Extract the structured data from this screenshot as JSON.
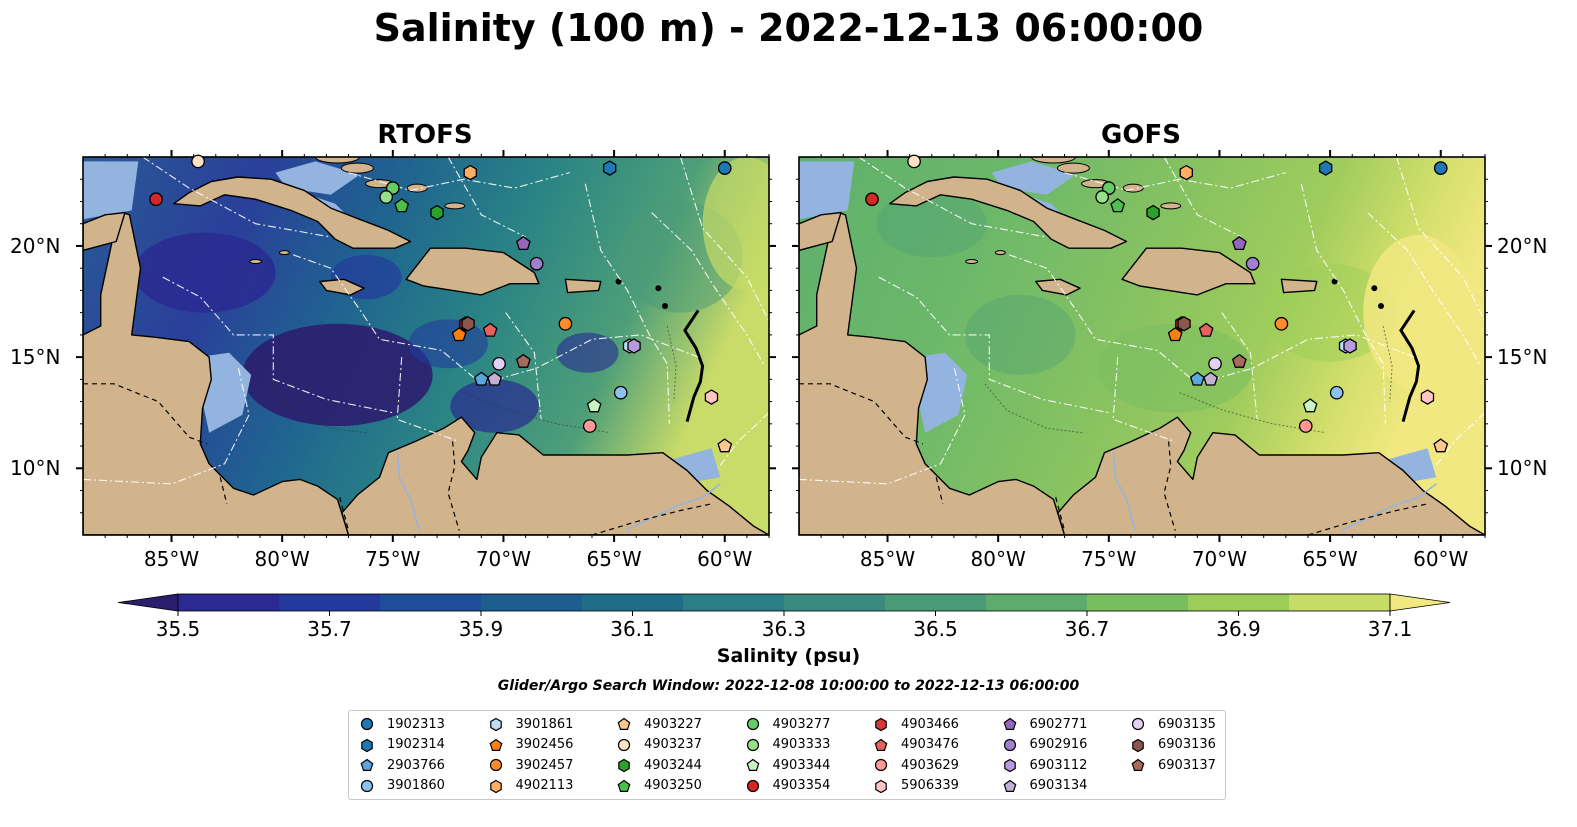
{
  "title": "Salinity (100 m) - 2022-12-13 06:00:00",
  "panels": [
    {
      "title": "RTOFS",
      "style": "rtofs"
    },
    {
      "title": "GOFS",
      "style": "gofs"
    }
  ],
  "map": {
    "lon_range": [
      -89,
      -58
    ],
    "lat_range": [
      7,
      24
    ],
    "x_ticks": [
      "85°W",
      "80°W",
      "75°W",
      "70°W",
      "65°W",
      "60°W"
    ],
    "y_ticks": [
      "20°N",
      "15°N",
      "10°N"
    ],
    "land_color": "#d2b48c",
    "shelf_color": "#94b4e0"
  },
  "colorbar": {
    "label": "Salinity (psu)",
    "ticks": [
      "35.5",
      "35.7",
      "35.9",
      "36.1",
      "36.3",
      "36.5",
      "36.7",
      "36.9",
      "37.1"
    ],
    "colors": [
      "#2b1e6e",
      "#2a2a92",
      "#233a9c",
      "#1f4d98",
      "#1e5e8e",
      "#206d88",
      "#2b7d86",
      "#3a8a80",
      "#4a9a78",
      "#5dac6e",
      "#78bd60",
      "#9ccd58",
      "#c6dc66",
      "#f2e882"
    ]
  },
  "window_text": "Glider/Argo Search Window: 2022-12-08 10:00:00 to 2022-12-13 06:00:00",
  "floats": [
    {
      "id": "1902313",
      "shape": "circle",
      "color": "#1f77b4",
      "lon": -60.0,
      "lat": 23.5
    },
    {
      "id": "1902314",
      "shape": "hexagon",
      "color": "#1f77b4",
      "lon": -65.2,
      "lat": 23.5
    },
    {
      "id": "2903766",
      "shape": "pentagon",
      "color": "#5aa7e0",
      "lon": -71.0,
      "lat": 14.0
    },
    {
      "id": "3901860",
      "shape": "circle",
      "color": "#8dc3f0",
      "lon": -64.7,
      "lat": 13.4
    },
    {
      "id": "3901861",
      "shape": "hexagon",
      "color": "#bcdcf8",
      "lon": -64.3,
      "lat": 15.5
    },
    {
      "id": "3902456",
      "shape": "pentagon",
      "color": "#ff7f0e",
      "lon": -72.0,
      "lat": 16.0
    },
    {
      "id": "3902457",
      "shape": "circle",
      "color": "#ff8c2a",
      "lon": -67.2,
      "lat": 16.5
    },
    {
      "id": "4902113",
      "shape": "hexagon",
      "color": "#ffae66",
      "lon": -71.5,
      "lat": 23.3
    },
    {
      "id": "4903227",
      "shape": "pentagon",
      "color": "#ffc890",
      "lon": -60.0,
      "lat": 11.0
    },
    {
      "id": "4903237",
      "shape": "circle",
      "color": "#ffe2c4",
      "lon": -83.8,
      "lat": 23.8
    },
    {
      "id": "4903244",
      "shape": "hexagon",
      "color": "#2ca02c",
      "lon": -73.0,
      "lat": 21.5
    },
    {
      "id": "4903250",
      "shape": "pentagon",
      "color": "#4cc04c",
      "lon": -74.6,
      "lat": 21.8
    },
    {
      "id": "4903277",
      "shape": "circle",
      "color": "#66cc66",
      "lon": -75.0,
      "lat": 22.6
    },
    {
      "id": "4903333",
      "shape": "circle",
      "color": "#98df8a",
      "lon": -75.3,
      "lat": 22.2
    },
    {
      "id": "4903344",
      "shape": "pentagon",
      "color": "#c8f5c0",
      "lon": -65.9,
      "lat": 12.8
    },
    {
      "id": "4903354",
      "shape": "circle",
      "color": "#d62728",
      "lon": -85.7,
      "lat": 22.1
    },
    {
      "id": "4903466",
      "shape": "hexagon",
      "color": "#d63838",
      "lon": -71.7,
      "lat": 16.5
    },
    {
      "id": "4903476",
      "shape": "pentagon",
      "color": "#e86060",
      "lon": -70.6,
      "lat": 16.2
    },
    {
      "id": "4903629",
      "shape": "circle",
      "color": "#ff9896",
      "lon": -66.1,
      "lat": 11.9
    },
    {
      "id": "5906339",
      "shape": "hexagon",
      "color": "#ffc6c4",
      "lon": -60.6,
      "lat": 13.2
    },
    {
      "id": "6902771",
      "shape": "pentagon",
      "color": "#9467bd",
      "lon": -69.1,
      "lat": 20.1
    },
    {
      "id": "6902916",
      "shape": "circle",
      "color": "#a37fd0",
      "lon": -68.5,
      "lat": 19.2
    },
    {
      "id": "6903112",
      "shape": "hexagon",
      "color": "#b89ae0",
      "lon": -64.1,
      "lat": 15.5
    },
    {
      "id": "6903134",
      "shape": "pentagon",
      "color": "#c5b0d5",
      "lon": -70.4,
      "lat": 14.0
    },
    {
      "id": "6903135",
      "shape": "circle",
      "color": "#e4d0f4",
      "lon": -70.2,
      "lat": 14.7
    },
    {
      "id": "6903136",
      "shape": "hexagon",
      "color": "#8c564b",
      "lon": -71.6,
      "lat": 16.5
    },
    {
      "id": "6903137",
      "shape": "pentagon",
      "color": "#a86a5c",
      "lon": -69.1,
      "lat": 14.8
    }
  ]
}
